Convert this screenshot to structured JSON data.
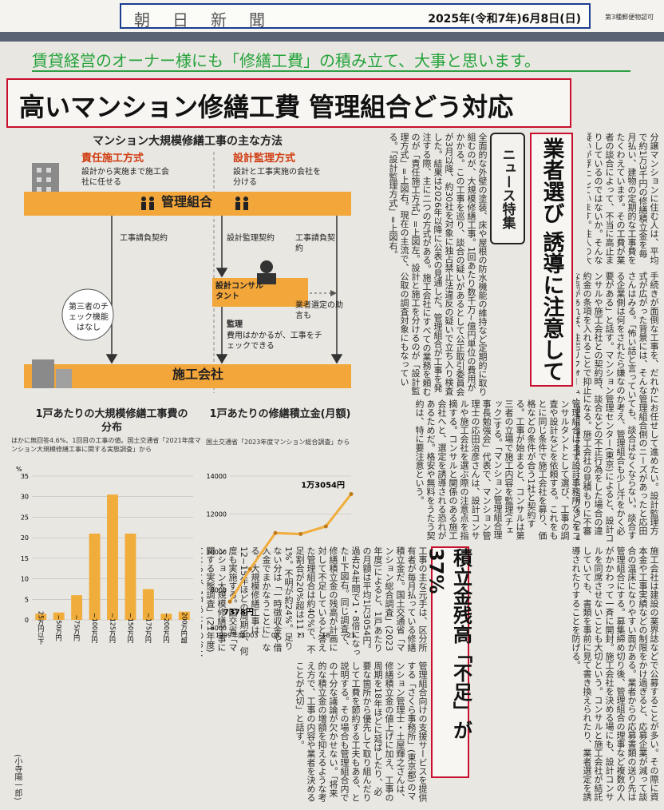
{
  "masthead": {
    "name": "朝日新聞",
    "date": "2025年(令和7年)6月8日(日)",
    "note": "第3種郵便物認可"
  },
  "tagline": "賃貸経営のオーナー様にも「修繕工費」の積み立て、大事と思います。",
  "headline": "高いマンション修繕工費 管理組合どう対応",
  "headings": {
    "feature": "ニュース特集",
    "main": "業者選び 誘導に注意して",
    "sub": "積立金残高「不足」が37%"
  },
  "infographic": {
    "title": "マンション大規模修繕工事の主な方法",
    "method1_title": "責任施工方式",
    "method1_desc": "設計から実施まで施工会社に任せる",
    "method2_title": "設計監理方式",
    "method2_desc": "設計と工事実施の会社を分ける",
    "kanri": "管理組合",
    "contract1": "工事請負契約",
    "contract2": "設計監理契約",
    "contract3": "工事請負契約",
    "third_party": "第三者のチェック機能はなし",
    "consultant": "設計コンサルタント",
    "advice": "業者選定の助言も",
    "supervise_title": "監理",
    "supervise_desc": "費用はかかるが、工事をチェックできる",
    "sekou": "施工会社"
  },
  "chart_data": [
    {
      "type": "bar",
      "title": "1戸あたりの大規模修繕工事費の分布",
      "note": "ほかに無回答4.6%、1回目の工事の値。国土交通省「2021年度マンション大規模修繕工事に関する実態調査」から",
      "categories": [
        "25万円以下",
        "~50万円",
        "~75万円",
        "~100万円",
        "~125万円",
        "~150万円",
        "~175万円",
        "~200万円",
        "200万円超"
      ],
      "values": [
        1.5,
        1.8,
        6,
        21,
        30.5,
        21,
        7.5,
        1.5,
        2
      ],
      "ylim": [
        0,
        35
      ],
      "yticks": [
        "0",
        "5",
        "10",
        "15",
        "20",
        "25",
        "30",
        "35"
      ],
      "ylabel": "%",
      "color": "#f0ad3c"
    },
    {
      "type": "line",
      "title": "1戸あたりの修繕積立金(月額)",
      "note": "国土交通省「2023年度マンション総合調査」から",
      "x": [
        1999,
        2003,
        2008,
        2013,
        2018,
        2023
      ],
      "xticks": [
        "1999年度",
        "2003",
        "08",
        "13",
        "18",
        "23"
      ],
      "values": [
        7378,
        9100,
        11000,
        10950,
        11350,
        13054
      ],
      "ylim": [
        6000,
        14000
      ],
      "yticks": [
        "6000",
        "8000",
        "10000",
        "12000",
        "14000"
      ],
      "start_label": "7378円",
      "end_label": "1万3054円",
      "color": "#f0ad3c"
    }
  ],
  "articles": {
    "lead": "分譲マンションに住む人は、平均で約1万3千円の修繕積立金を毎月払い、建物の定期的な工事費をたくわえています。その工費が業者の談合によって、不当に高止まりしているのではないか。そんな疑いが浮上しています。住人の大切なお金を無駄づかいしないために、管理組合は何ができるのでしょうか。",
    "col1": "全面的な外壁の塗装、床や屋根の防水機能の維持など定期的に取り組むのが、大規模修繕工事。1回あたり数千万~億円単位の費用がかかる。この工事を巡り、談合の疑いがあるとして公正取引委員会が3月以降、約30社を対象に独占禁止法違反の疑いで立ち入り検査した。結果は2026年以降に公表の見通しだ。管理組合が工事を発注する際、主に二つの方式がある。施工会社にすべての業務を頼むのが「責任施工方式」=上図左。設計と施工を分けるのが「設計監理方式」=上図右。現在の主流で、公取の調査対象にもなっている。「設計監理方式」=上図右。",
    "col2": "管理組合はまず設計事務所などをコンサルタントとして選び、工事の調査や設計などを依頼する。これをもとに同じ条件で施工会社を募り、価格などの条件が合う1社と契約する。工事が始まると、コンサルは第三者の立場で施工内容を監理(チェック)する。「マンション管理組合理事長勉強会」代表で、マンション管理士の応田治彦さんは、設計コンサルや施工会社を選ぶ際の注意点を指摘する。コンサルと関係のある施工会社へと、選定を誘導される恐れがあるためだ。格安や無料をうたう契約は、特に要注意という。",
    "col3": "施工会社は建設の業界誌などで公募することが多い。その際に資本金や工事実績などの制限をかけ過ぎると、応募企業が減って談合の温床になりやすい面がある。業者からの応募書類の送り先は管理組合にする。募集締め切り後、管理組合の理事など複数の人がかかわって一斉に開封。施工会社を決める場にも、設計コンサルを同席させないことも大切という。コンサルと施工会社が結託していても、書類を事前に見て書き換えられたり、業者選定を誘導されたりすることを防げる。",
    "col4": "手続きが面倒な工事を、だれかにお任せして進めたい。設計監理方式が広がった背景には、そんな管理組合側のニーズがあったと応田さんはみる。「怖い話と言っていても、談合はなくならない。談合する企業側は何をされたら嫌なのか考え、管理組合も少し汗をかく必要がある」と話す。マンション管理センター(東京)によると、設計コンサルや施工会社との契約時、談合などの不正行為をした場合の違約金の条項を入れることで抑止になる。施工会社の見積もりに不審な点があれば、住宅リフォーム・紛争処理支援センター(同)の「チェックサービス」(03・3556・5147)でも相談できる。",
    "col5": "工事の主な元手は、区分所有者が毎月払っている修繕積立金だ。国土交通省「マンション総合調査」(2023年度)によると、1戸あたりの月額は平均1万3054円。過去24年間で1・8倍になった=下図右。同じ調査で、修繕積立金の残高が計画に対して不足していると答えた管理組合は約40%で、不足割合が20%超は11・1%。不明が約24%。足りない分は「一時徴収金や借入金でまかなうことに」なる。大規模修繕工事は12~15年ほどの周期で、何度も実施する。国交省「マンション大規模修繕工事に関する実態調査」(21年度)によると、1戸あたりのおよその平均工費は、1回目152万円=下図左、2回目122万円、3回目106万円だった。",
    "col6": "管理組合向けの支援サービスを提供する「さくら事務所」(東京都)のマンション管理士・土屋輝之さんは、修繕積立金の値上げに加え、工事の周期を18年ほどに延ばしたり、必要な箇所から優先して取り組んだりして工費を節約する工夫もある、と説明する。その場合も管理組合内での十分な議論が欠かせない。「将来的な積立金の増額を抑えるような考え方で、工事の内容や業者を決めることが大切」と話す。",
    "byline": "(小寺陽一郎)"
  }
}
